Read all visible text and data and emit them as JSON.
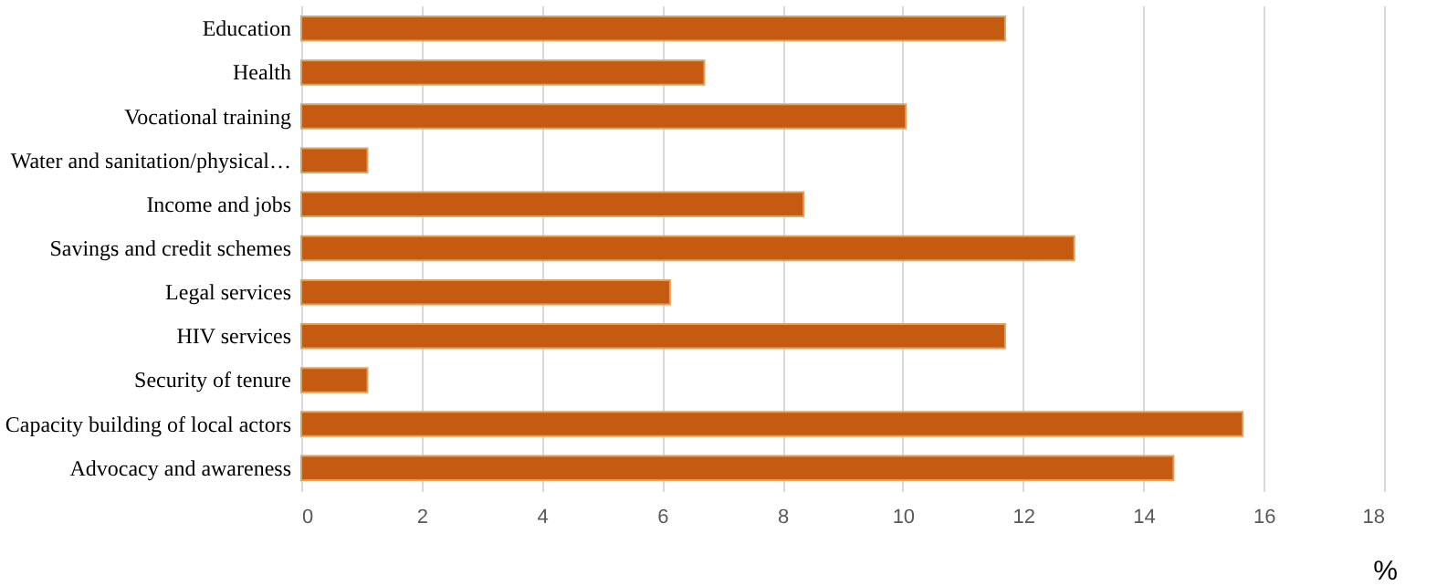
{
  "chart_data": {
    "type": "bar",
    "orientation": "horizontal",
    "xlabel": "%",
    "categories": [
      "Education",
      "Health",
      "Vocational training",
      "Water and sanitation/physical…",
      "Income and jobs",
      "Savings and credit schemes",
      "Legal services",
      "HIV services",
      "Security of tenure",
      "Capacity building of local actors",
      "Advocacy and awareness"
    ],
    "values": [
      11.7,
      6.7,
      10.05,
      1.1,
      8.35,
      12.85,
      6.13,
      11.7,
      1.1,
      15.65,
      14.5
    ],
    "color": "#c55a11",
    "xlim": [
      0,
      18
    ],
    "xticks": [
      0,
      2,
      4,
      6,
      8,
      10,
      12,
      14,
      16,
      18
    ],
    "grid": "x"
  }
}
